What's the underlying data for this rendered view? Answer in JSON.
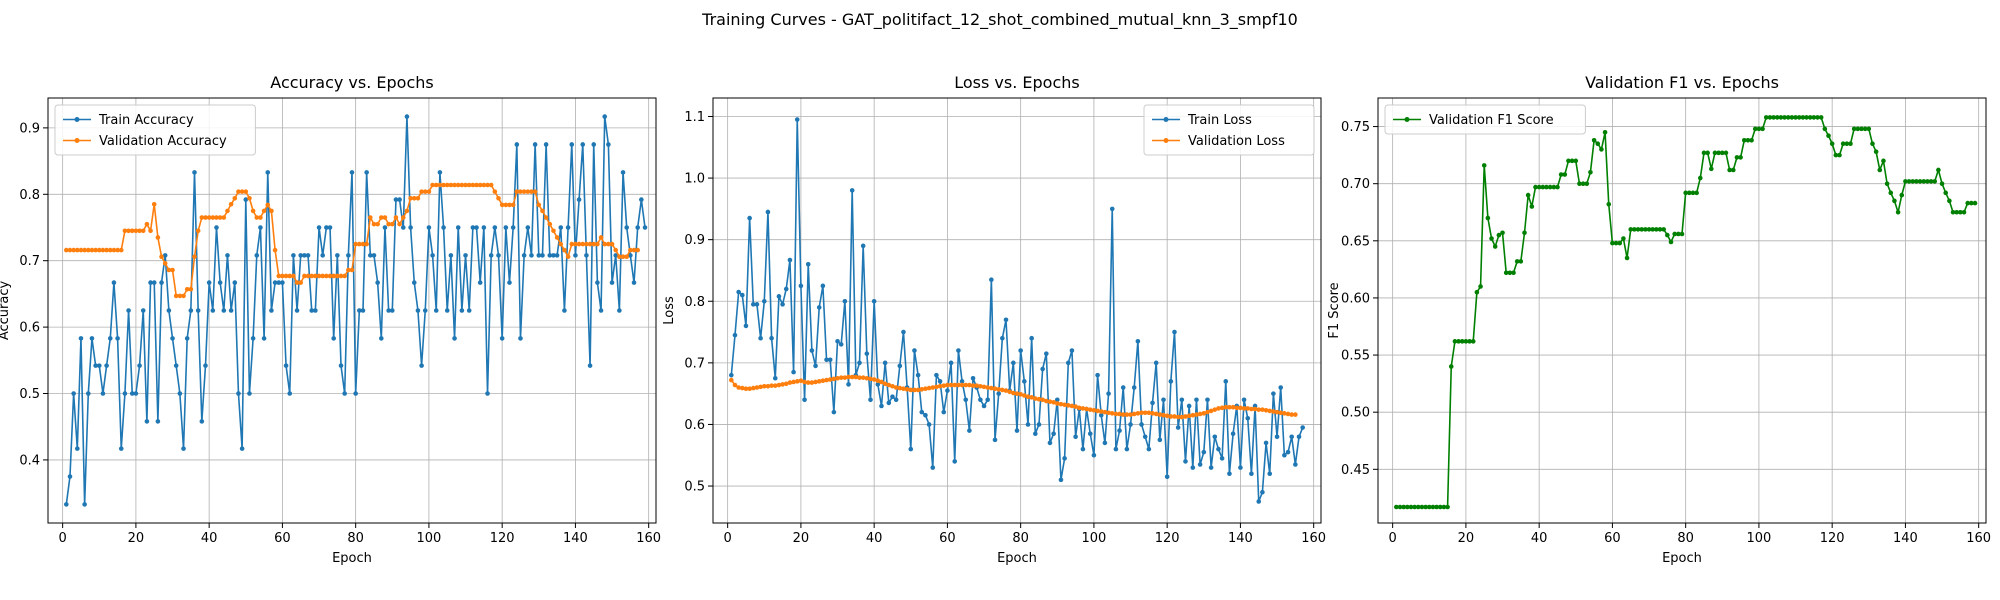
{
  "suptitle": "Training Curves - GAT_politifact_12_shot_combined_mutual_knn_3_smpf10",
  "colors": {
    "blue": "#1f77b4",
    "orange": "#ff7f0e",
    "green": "#008000",
    "grid": "#b0b0b0"
  },
  "chart_data": [
    {
      "type": "line",
      "title": "Accuracy vs. Epochs",
      "xlabel": "Epoch",
      "ylabel": "Accuracy",
      "xlim": [
        -4,
        162
      ],
      "ylim": [
        0.305,
        0.945
      ],
      "xticks": [
        0,
        20,
        40,
        60,
        80,
        100,
        120,
        140,
        160
      ],
      "yticks": [
        0.4,
        0.5,
        0.6,
        0.7,
        0.8,
        0.9
      ],
      "grid": true,
      "legend": "top-left",
      "series": [
        {
          "name": "Train Accuracy",
          "color": "#1f77b4",
          "values": [
            0.333,
            0.375,
            0.5,
            0.417,
            0.583,
            0.333,
            0.5,
            0.583,
            0.542,
            0.542,
            0.5,
            0.542,
            0.583,
            0.667,
            0.583,
            0.417,
            0.5,
            0.625,
            0.5,
            0.5,
            0.542,
            0.625,
            0.458,
            0.667,
            0.667,
            0.458,
            0.667,
            0.708,
            0.625,
            0.583,
            0.542,
            0.5,
            0.417,
            0.583,
            0.625,
            0.833,
            0.625,
            0.458,
            0.542,
            0.667,
            0.625,
            0.75,
            0.667,
            0.625,
            0.708,
            0.625,
            0.667,
            0.5,
            0.417,
            0.792,
            0.5,
            0.583,
            0.708,
            0.75,
            0.583,
            0.833,
            0.625,
            0.667,
            0.667,
            0.667,
            0.542,
            0.5,
            0.708,
            0.625,
            0.708,
            0.708,
            0.708,
            0.625,
            0.625,
            0.75,
            0.708,
            0.75,
            0.75,
            0.583,
            0.708,
            0.542,
            0.5,
            0.708,
            0.833,
            0.5,
            0.625,
            0.625,
            0.833,
            0.708,
            0.708,
            0.667,
            0.583,
            0.75,
            0.625,
            0.625,
            0.792,
            0.792,
            0.75,
            0.917,
            0.75,
            0.667,
            0.625,
            0.542,
            0.625,
            0.75,
            0.708,
            0.625,
            0.833,
            0.75,
            0.625,
            0.708,
            0.583,
            0.75,
            0.625,
            0.708,
            0.625,
            0.75,
            0.75,
            0.667,
            0.75,
            0.5,
            0.708,
            0.75,
            0.708,
            0.583,
            0.75,
            0.667,
            0.75,
            0.875,
            0.583,
            0.708,
            0.75,
            0.708,
            0.875,
            0.708,
            0.708,
            0.875,
            0.708,
            0.708,
            0.708,
            0.75,
            0.625,
            0.75,
            0.875,
            0.708,
            0.792,
            0.875,
            0.708,
            0.542,
            0.875,
            0.667,
            0.625,
            0.917,
            0.875,
            0.667,
            0.708,
            0.625,
            0.833,
            0.75,
            0.708,
            0.667,
            0.75,
            0.792,
            0.75
          ]
        },
        {
          "name": "Validation Accuracy",
          "color": "#ff7f0e",
          "values": [
            0.716,
            0.716,
            0.716,
            0.716,
            0.716,
            0.716,
            0.716,
            0.716,
            0.716,
            0.716,
            0.716,
            0.716,
            0.716,
            0.716,
            0.716,
            0.716,
            0.745,
            0.745,
            0.745,
            0.745,
            0.745,
            0.745,
            0.755,
            0.745,
            0.785,
            0.735,
            0.706,
            0.696,
            0.686,
            0.686,
            0.647,
            0.647,
            0.647,
            0.657,
            0.657,
            0.706,
            0.745,
            0.765,
            0.765,
            0.765,
            0.765,
            0.765,
            0.765,
            0.765,
            0.775,
            0.785,
            0.794,
            0.804,
            0.804,
            0.804,
            0.794,
            0.775,
            0.765,
            0.765,
            0.775,
            0.784,
            0.775,
            0.716,
            0.677,
            0.677,
            0.677,
            0.677,
            0.677,
            0.667,
            0.667,
            0.677,
            0.677,
            0.677,
            0.677,
            0.677,
            0.677,
            0.677,
            0.677,
            0.677,
            0.677,
            0.677,
            0.677,
            0.686,
            0.686,
            0.725,
            0.725,
            0.725,
            0.725,
            0.765,
            0.755,
            0.755,
            0.765,
            0.765,
            0.755,
            0.755,
            0.765,
            0.755,
            0.765,
            0.775,
            0.794,
            0.794,
            0.794,
            0.804,
            0.804,
            0.804,
            0.814,
            0.814,
            0.814,
            0.814,
            0.814,
            0.814,
            0.814,
            0.814,
            0.814,
            0.814,
            0.814,
            0.814,
            0.814,
            0.814,
            0.814,
            0.814,
            0.814,
            0.804,
            0.794,
            0.784,
            0.784,
            0.784,
            0.784,
            0.804,
            0.804,
            0.804,
            0.804,
            0.804,
            0.804,
            0.784,
            0.775,
            0.765,
            0.755,
            0.745,
            0.735,
            0.725,
            0.716,
            0.706,
            0.725,
            0.725,
            0.725,
            0.725,
            0.725,
            0.725,
            0.725,
            0.725,
            0.735,
            0.725,
            0.725,
            0.725,
            0.716,
            0.706,
            0.706,
            0.706,
            0.716,
            0.716,
            0.716
          ]
        }
      ]
    },
    {
      "type": "line",
      "title": "Loss vs. Epochs",
      "xlabel": "Epoch",
      "ylabel": "Loss",
      "xlim": [
        -4,
        162
      ],
      "ylim": [
        0.44,
        1.13
      ],
      "xticks": [
        0,
        20,
        40,
        60,
        80,
        100,
        120,
        140,
        160
      ],
      "yticks": [
        0.5,
        0.6,
        0.7,
        0.8,
        0.9,
        1.0,
        1.1
      ],
      "grid": true,
      "legend": "top-right",
      "series": [
        {
          "name": "Train Loss",
          "color": "#1f77b4",
          "values": [
            0.68,
            0.745,
            0.815,
            0.81,
            0.76,
            0.935,
            0.795,
            0.795,
            0.74,
            0.8,
            0.945,
            0.74,
            0.675,
            0.808,
            0.795,
            0.82,
            0.867,
            0.685,
            1.095,
            0.825,
            0.64,
            0.86,
            0.72,
            0.695,
            0.79,
            0.825,
            0.705,
            0.705,
            0.62,
            0.735,
            0.73,
            0.8,
            0.665,
            0.98,
            0.68,
            0.7,
            0.89,
            0.715,
            0.64,
            0.8,
            0.665,
            0.63,
            0.7,
            0.635,
            0.645,
            0.64,
            0.695,
            0.75,
            0.66,
            0.56,
            0.72,
            0.68,
            0.62,
            0.615,
            0.6,
            0.53,
            0.68,
            0.67,
            0.62,
            0.655,
            0.7,
            0.54,
            0.72,
            0.67,
            0.64,
            0.59,
            0.675,
            0.66,
            0.64,
            0.63,
            0.64,
            0.835,
            0.575,
            0.65,
            0.74,
            0.77,
            0.655,
            0.7,
            0.59,
            0.72,
            0.67,
            0.6,
            0.74,
            0.585,
            0.6,
            0.69,
            0.715,
            0.57,
            0.585,
            0.64,
            0.51,
            0.545,
            0.7,
            0.72,
            0.58,
            0.625,
            0.56,
            0.625,
            0.585,
            0.55,
            0.68,
            0.615,
            0.57,
            0.65,
            0.95,
            0.56,
            0.59,
            0.66,
            0.56,
            0.6,
            0.66,
            0.735,
            0.6,
            0.58,
            0.56,
            0.635,
            0.7,
            0.575,
            0.64,
            0.515,
            0.67,
            0.75,
            0.595,
            0.64,
            0.54,
            0.63,
            0.53,
            0.64,
            0.535,
            0.555,
            0.64,
            0.53,
            0.58,
            0.56,
            0.545,
            0.67,
            0.52,
            0.585,
            0.63,
            0.53,
            0.64,
            0.61,
            0.52,
            0.63,
            0.475,
            0.49,
            0.57,
            0.52,
            0.65,
            0.58,
            0.66,
            0.55,
            0.555,
            0.58,
            0.535,
            0.58,
            0.595
          ]
        },
        {
          "name": "Validation Loss",
          "color": "#ff7f0e",
          "values": [
            0.672,
            0.664,
            0.66,
            0.659,
            0.658,
            0.658,
            0.659,
            0.66,
            0.661,
            0.662,
            0.662,
            0.663,
            0.663,
            0.664,
            0.665,
            0.666,
            0.668,
            0.669,
            0.67,
            0.671,
            0.669,
            0.668,
            0.668,
            0.669,
            0.67,
            0.671,
            0.672,
            0.673,
            0.674,
            0.675,
            0.676,
            0.676,
            0.677,
            0.677,
            0.677,
            0.676,
            0.676,
            0.675,
            0.674,
            0.673,
            0.671,
            0.669,
            0.666,
            0.664,
            0.662,
            0.66,
            0.659,
            0.658,
            0.657,
            0.656,
            0.656,
            0.656,
            0.657,
            0.658,
            0.659,
            0.66,
            0.661,
            0.662,
            0.663,
            0.664,
            0.664,
            0.664,
            0.664,
            0.664,
            0.664,
            0.664,
            0.663,
            0.663,
            0.662,
            0.661,
            0.66,
            0.659,
            0.658,
            0.657,
            0.656,
            0.655,
            0.653,
            0.651,
            0.65,
            0.649,
            0.647,
            0.645,
            0.644,
            0.642,
            0.641,
            0.64,
            0.638,
            0.637,
            0.636,
            0.634,
            0.633,
            0.632,
            0.631,
            0.63,
            0.629,
            0.627,
            0.626,
            0.625,
            0.624,
            0.623,
            0.622,
            0.621,
            0.62,
            0.619,
            0.618,
            0.617,
            0.617,
            0.616,
            0.616,
            0.616,
            0.617,
            0.618,
            0.619,
            0.619,
            0.619,
            0.618,
            0.617,
            0.616,
            0.615,
            0.614,
            0.613,
            0.613,
            0.612,
            0.612,
            0.613,
            0.614,
            0.615,
            0.616,
            0.617,
            0.618,
            0.62,
            0.622,
            0.624,
            0.626,
            0.627,
            0.628,
            0.628,
            0.628,
            0.627,
            0.627,
            0.626,
            0.626,
            0.625,
            0.625,
            0.624,
            0.624,
            0.623,
            0.622,
            0.621,
            0.62,
            0.619,
            0.618,
            0.617,
            0.616,
            0.616
          ]
        }
      ]
    },
    {
      "type": "line",
      "title": "Validation F1 vs. Epochs",
      "xlabel": "Epoch",
      "ylabel": "F1 Score",
      "xlim": [
        -4,
        162
      ],
      "ylim": [
        0.403,
        0.775
      ],
      "xticks": [
        0,
        20,
        40,
        60,
        80,
        100,
        120,
        140,
        160
      ],
      "yticks": [
        0.45,
        0.5,
        0.55,
        0.6,
        0.65,
        0.7,
        0.75
      ],
      "grid": true,
      "legend": "top-left",
      "series": [
        {
          "name": "Validation F1 Score",
          "color": "#008000",
          "values": [
            0.417,
            0.417,
            0.417,
            0.417,
            0.417,
            0.417,
            0.417,
            0.417,
            0.417,
            0.417,
            0.417,
            0.417,
            0.417,
            0.417,
            0.417,
            0.54,
            0.562,
            0.562,
            0.562,
            0.562,
            0.562,
            0.562,
            0.605,
            0.61,
            0.716,
            0.67,
            0.652,
            0.645,
            0.655,
            0.657,
            0.622,
            0.622,
            0.622,
            0.632,
            0.632,
            0.657,
            0.69,
            0.68,
            0.697,
            0.697,
            0.697,
            0.697,
            0.697,
            0.697,
            0.697,
            0.708,
            0.708,
            0.72,
            0.72,
            0.72,
            0.7,
            0.7,
            0.7,
            0.71,
            0.738,
            0.735,
            0.73,
            0.745,
            0.682,
            0.648,
            0.648,
            0.648,
            0.652,
            0.635,
            0.66,
            0.66,
            0.66,
            0.66,
            0.66,
            0.66,
            0.66,
            0.66,
            0.66,
            0.66,
            0.655,
            0.649,
            0.656,
            0.656,
            0.656,
            0.692,
            0.692,
            0.692,
            0.692,
            0.705,
            0.727,
            0.727,
            0.713,
            0.727,
            0.727,
            0.727,
            0.727,
            0.712,
            0.712,
            0.723,
            0.723,
            0.738,
            0.738,
            0.738,
            0.748,
            0.748,
            0.748,
            0.758,
            0.758,
            0.758,
            0.758,
            0.758,
            0.758,
            0.758,
            0.758,
            0.758,
            0.758,
            0.758,
            0.758,
            0.758,
            0.758,
            0.758,
            0.758,
            0.748,
            0.742,
            0.735,
            0.725,
            0.725,
            0.735,
            0.735,
            0.735,
            0.748,
            0.748,
            0.748,
            0.748,
            0.748,
            0.735,
            0.728,
            0.712,
            0.72,
            0.7,
            0.692,
            0.685,
            0.675,
            0.69,
            0.702,
            0.702,
            0.702,
            0.702,
            0.702,
            0.702,
            0.702,
            0.702,
            0.702,
            0.712,
            0.7,
            0.692,
            0.685,
            0.675,
            0.675,
            0.675,
            0.675,
            0.683,
            0.683,
            0.683
          ]
        }
      ]
    }
  ]
}
